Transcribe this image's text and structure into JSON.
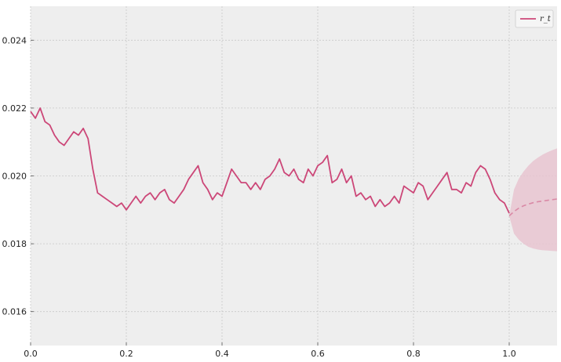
{
  "chart_data": {
    "type": "line",
    "title": "",
    "xlabel": "",
    "ylabel": "",
    "xlim": [
      0.0,
      1.1
    ],
    "ylim": [
      0.015,
      0.025
    ],
    "xticks": [
      0.0,
      0.2,
      0.4,
      0.6,
      0.8,
      1.0
    ],
    "xtick_labels": [
      "0.0",
      "0.2",
      "0.4",
      "0.6",
      "0.8",
      "1.0"
    ],
    "yticks": [
      0.016,
      0.018,
      0.02,
      0.022,
      0.024
    ],
    "ytick_labels": [
      "0.016",
      "0.018",
      "0.020",
      "0.022",
      "0.024"
    ],
    "grid": true,
    "legend": {
      "placement": "top-right",
      "entries": [
        "r_t"
      ]
    },
    "colors": {
      "series": "#cc4778",
      "band": "#e8c4d0",
      "background": "#eeeeee",
      "grid": "#c8c8c8"
    },
    "series": [
      {
        "name": "r_t",
        "x": [
          0.0,
          0.01,
          0.02,
          0.03,
          0.04,
          0.05,
          0.06,
          0.07,
          0.08,
          0.09,
          0.1,
          0.11,
          0.12,
          0.13,
          0.14,
          0.15,
          0.16,
          0.17,
          0.18,
          0.19,
          0.2,
          0.21,
          0.22,
          0.23,
          0.24,
          0.25,
          0.26,
          0.27,
          0.28,
          0.29,
          0.3,
          0.31,
          0.32,
          0.33,
          0.34,
          0.35,
          0.36,
          0.37,
          0.38,
          0.39,
          0.4,
          0.41,
          0.42,
          0.43,
          0.44,
          0.45,
          0.46,
          0.47,
          0.48,
          0.49,
          0.5,
          0.51,
          0.52,
          0.53,
          0.54,
          0.55,
          0.56,
          0.57,
          0.58,
          0.59,
          0.6,
          0.61,
          0.62,
          0.63,
          0.64,
          0.65,
          0.66,
          0.67,
          0.68,
          0.69,
          0.7,
          0.71,
          0.72,
          0.73,
          0.74,
          0.75,
          0.76,
          0.77,
          0.78,
          0.79,
          0.8,
          0.81,
          0.82,
          0.83,
          0.84,
          0.85,
          0.86,
          0.87,
          0.88,
          0.89,
          0.9,
          0.91,
          0.92,
          0.93,
          0.94,
          0.95,
          0.96,
          0.97,
          0.98,
          0.99,
          1.0
        ],
        "values": [
          0.0219,
          0.0217,
          0.022,
          0.0216,
          0.0215,
          0.0212,
          0.021,
          0.0209,
          0.0211,
          0.0213,
          0.0212,
          0.0214,
          0.0211,
          0.0202,
          0.0195,
          0.0194,
          0.0193,
          0.0192,
          0.0191,
          0.0192,
          0.019,
          0.0192,
          0.0194,
          0.0192,
          0.0194,
          0.0195,
          0.0193,
          0.0195,
          0.0196,
          0.0193,
          0.0192,
          0.0194,
          0.0196,
          0.0199,
          0.0201,
          0.0203,
          0.0198,
          0.0196,
          0.0193,
          0.0195,
          0.0194,
          0.0198,
          0.0202,
          0.02,
          0.0198,
          0.0198,
          0.0196,
          0.0198,
          0.0196,
          0.0199,
          0.02,
          0.0202,
          0.0205,
          0.0201,
          0.02,
          0.0202,
          0.0199,
          0.0198,
          0.0202,
          0.02,
          0.0203,
          0.0204,
          0.0206,
          0.0198,
          0.0199,
          0.0202,
          0.0198,
          0.02,
          0.0194,
          0.0195,
          0.0193,
          0.0194,
          0.0191,
          0.0193,
          0.0191,
          0.0192,
          0.0194,
          0.0192,
          0.0197,
          0.0196,
          0.0195,
          0.0198,
          0.0197,
          0.0193,
          0.0195,
          0.0197,
          0.0199,
          0.0201,
          0.0196,
          0.0196,
          0.0195,
          0.0198,
          0.0197,
          0.0201,
          0.0203,
          0.0202,
          0.0199,
          0.0195,
          0.0193,
          0.0192,
          0.0189
        ]
      }
    ],
    "forecast": {
      "x": [
        1.0,
        1.01,
        1.02,
        1.03,
        1.04,
        1.05,
        1.06,
        1.07,
        1.08,
        1.09,
        1.1
      ],
      "mean": [
        0.01882,
        0.01895,
        0.01905,
        0.01912,
        0.01917,
        0.01921,
        0.01924,
        0.01926,
        0.01928,
        0.0193,
        0.01932
      ],
      "upper": [
        0.01882,
        0.0196,
        0.01992,
        0.02013,
        0.0203,
        0.02044,
        0.02054,
        0.02063,
        0.0207,
        0.02076,
        0.02081
      ],
      "lower": [
        0.01882,
        0.0183,
        0.01812,
        0.018,
        0.01791,
        0.01786,
        0.01783,
        0.01781,
        0.0178,
        0.01779,
        0.01778
      ]
    }
  }
}
